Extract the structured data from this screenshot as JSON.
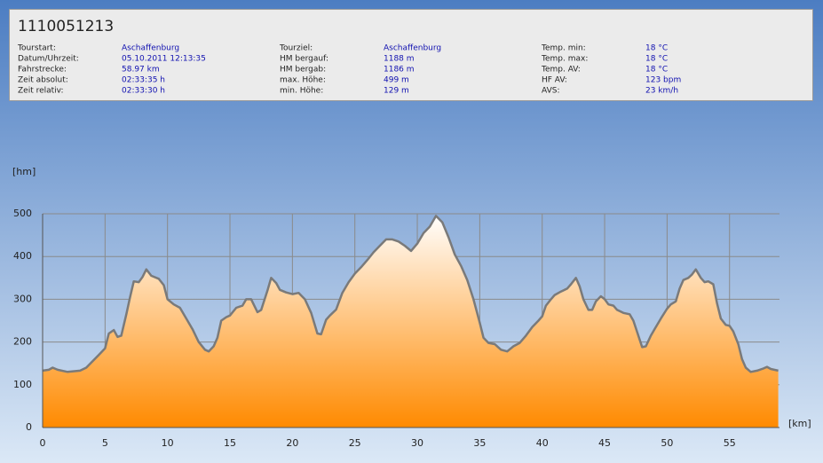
{
  "title": "1110051213",
  "info": [
    [
      {
        "label": "Tourstart:",
        "value": "Aschaffenburg"
      },
      {
        "label": "Datum/Uhrzeit:",
        "value": "05.10.2011 12:13:35"
      },
      {
        "label": "Fahrstrecke:",
        "value": "58.97 km"
      },
      {
        "label": "Zeit absolut:",
        "value": "02:33:35 h"
      },
      {
        "label": "Zeit relativ:",
        "value": "02:33:30 h"
      }
    ],
    [
      {
        "label": "Tourziel:",
        "value": "Aschaffenburg"
      },
      {
        "label": "HM bergauf:",
        "value": "1188 m"
      },
      {
        "label": "HM bergab:",
        "value": "1186 m"
      },
      {
        "label": "max. Höhe:",
        "value": "499 m"
      },
      {
        "label": "min. Höhe:",
        "value": "129 m"
      }
    ],
    [
      {
        "label": "Temp. min:",
        "value": "18 °C"
      },
      {
        "label": "Temp. max:",
        "value": "18 °C"
      },
      {
        "label": "Temp. AV:",
        "value": "18 °C"
      },
      {
        "label": "HF AV:",
        "value": "123 bpm"
      },
      {
        "label": "AVS:",
        "value": "23 km/h"
      }
    ]
  ],
  "chart_data": {
    "type": "area",
    "y_label": "[hm]",
    "x_label": "[km]",
    "x": [
      0,
      0.5,
      0.8,
      1.2,
      2,
      3,
      3.5,
      4,
      4.5,
      5,
      5.3,
      5.7,
      6,
      6.3,
      6.7,
      7,
      7.3,
      7.7,
      8,
      8.3,
      8.7,
      9.3,
      9.7,
      10,
      10.5,
      11,
      11.5,
      12,
      12.5,
      13,
      13.3,
      13.7,
      14,
      14.3,
      14.7,
      15,
      15.5,
      16,
      16.3,
      16.7,
      17.2,
      17.5,
      18,
      18.3,
      18.7,
      19,
      19.5,
      20,
      20.5,
      21,
      21.5,
      22,
      22.3,
      22.7,
      23,
      23.5,
      24,
      24.5,
      25,
      25.5,
      26,
      26.5,
      27,
      27.5,
      28,
      28.5,
      29,
      29.5,
      30,
      30.5,
      31,
      31.5,
      32,
      32.5,
      33,
      33.5,
      34,
      34.5,
      35,
      35.3,
      35.7,
      36.2,
      36.7,
      37.2,
      37.7,
      38.2,
      38.7,
      39.2,
      39.7,
      40,
      40.3,
      40.7,
      41,
      41.5,
      42,
      42.3,
      42.7,
      43,
      43.3,
      43.7,
      44,
      44.3,
      44.7,
      45,
      45.3,
      45.7,
      46,
      46.5,
      47,
      47.3,
      47.7,
      48,
      48.3,
      48.7,
      49,
      49.5,
      50,
      50.3,
      50.7,
      51,
      51.3,
      51.7,
      52,
      52.3,
      52.7,
      53,
      53.3,
      53.7,
      54,
      54.3,
      54.7,
      55,
      55.3,
      55.7,
      56,
      56.3,
      56.7,
      57.2,
      57.7,
      58,
      58.3,
      58.9
    ],
    "values": [
      133,
      135,
      140,
      135,
      130,
      133,
      140,
      155,
      170,
      185,
      220,
      228,
      212,
      215,
      265,
      305,
      342,
      340,
      352,
      370,
      355,
      348,
      333,
      300,
      288,
      280,
      255,
      230,
      200,
      182,
      178,
      190,
      210,
      250,
      258,
      262,
      280,
      285,
      300,
      300,
      270,
      275,
      320,
      350,
      338,
      322,
      316,
      312,
      315,
      300,
      268,
      220,
      218,
      252,
      262,
      276,
      315,
      340,
      360,
      375,
      392,
      410,
      425,
      440,
      440,
      435,
      425,
      413,
      430,
      455,
      470,
      495,
      480,
      445,
      405,
      378,
      345,
      300,
      245,
      210,
      198,
      195,
      182,
      178,
      190,
      198,
      215,
      235,
      250,
      260,
      285,
      300,
      310,
      318,
      325,
      335,
      350,
      330,
      300,
      275,
      275,
      295,
      307,
      300,
      288,
      285,
      275,
      268,
      265,
      250,
      215,
      188,
      190,
      215,
      230,
      255,
      278,
      288,
      295,
      325,
      345,
      350,
      358,
      370,
      350,
      340,
      342,
      335,
      290,
      255,
      240,
      238,
      225,
      195,
      160,
      140,
      130,
      133,
      138,
      142,
      137,
      133
    ],
    "color": "#ff8a00",
    "line_color": "#7a7a7a",
    "xlim": [
      0,
      59
    ],
    "xticks": [
      0,
      5,
      10,
      15,
      20,
      25,
      30,
      35,
      40,
      45,
      50,
      55
    ],
    "ylim": [
      0,
      500
    ],
    "yticks": [
      0,
      100,
      200,
      300,
      400,
      500
    ],
    "grid": true
  }
}
